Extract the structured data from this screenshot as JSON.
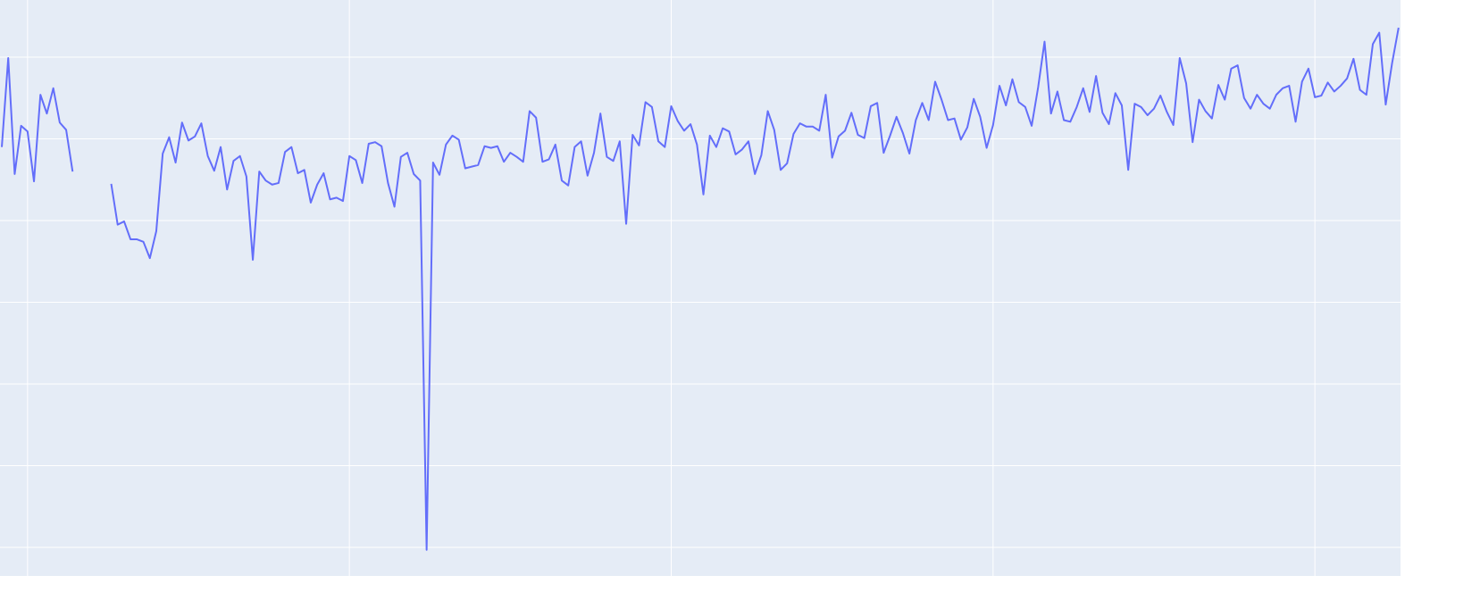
{
  "chart_data": {
    "type": "line",
    "x": [
      0,
      1,
      2,
      3,
      4,
      5,
      6,
      7,
      8,
      9,
      10,
      11,
      12,
      13,
      14,
      15,
      16,
      17,
      18,
      19,
      20,
      21,
      22,
      23,
      24,
      25,
      26,
      27,
      28,
      29,
      30,
      31,
      32,
      33,
      34,
      35,
      36,
      37,
      38,
      39,
      40,
      41,
      42,
      43,
      44,
      45,
      46,
      47,
      48,
      49,
      50,
      51,
      52,
      53,
      54,
      55,
      56,
      57,
      58,
      59,
      60,
      61,
      62,
      63,
      64,
      65,
      66,
      67,
      68,
      69,
      70,
      71,
      72,
      73,
      74,
      75,
      76,
      77,
      78,
      79,
      80,
      81,
      82,
      83,
      84,
      85,
      86,
      87,
      88,
      89,
      90,
      91,
      92,
      93,
      94,
      95,
      96,
      97,
      98,
      99,
      100,
      101,
      102,
      103,
      104,
      105,
      106,
      107,
      108,
      109,
      110,
      111,
      112,
      113,
      114,
      115,
      116,
      117,
      118,
      119,
      120,
      121,
      122,
      123,
      124,
      125,
      126,
      127,
      128,
      129,
      130,
      131,
      132,
      133,
      134,
      135,
      136,
      137,
      138,
      139,
      140,
      141,
      142,
      143,
      144,
      145,
      146,
      147,
      148,
      149,
      150,
      151,
      152,
      153,
      154,
      155,
      156,
      157,
      158,
      159,
      160,
      161,
      162,
      163,
      164,
      165,
      166,
      167,
      168,
      169,
      170,
      171,
      172,
      173,
      174,
      175,
      176,
      177,
      178,
      179,
      180,
      181,
      182,
      183,
      184,
      185,
      186,
      187,
      188,
      189,
      190,
      191,
      192,
      193,
      194,
      195,
      196,
      197,
      198,
      199,
      200,
      201,
      202,
      203,
      204,
      205,
      206,
      207,
      208,
      209,
      210,
      211,
      212,
      213,
      214,
      215,
      216,
      217
    ],
    "series": [
      {
        "color": "#636efa",
        "values": [
          4.9,
          5.99,
          4.57,
          5.16,
          5.09,
          4.48,
          5.54,
          5.31,
          5.62,
          5.2,
          5.11,
          4.6,
          null,
          null,
          null,
          null,
          null,
          4.45,
          3.95,
          3.99,
          3.77,
          3.77,
          3.74,
          3.54,
          3.87,
          4.82,
          5.02,
          4.71,
          5.2,
          4.98,
          5.03,
          5.19,
          4.79,
          4.61,
          4.9,
          4.38,
          4.73,
          4.79,
          4.54,
          3.52,
          4.6,
          4.49,
          4.44,
          4.46,
          4.84,
          4.9,
          4.58,
          4.62,
          4.22,
          4.44,
          4.58,
          4.26,
          4.28,
          4.24,
          4.79,
          4.74,
          4.46,
          4.94,
          4.96,
          4.91,
          4.46,
          4.17,
          4.78,
          4.83,
          4.57,
          4.49,
          -0.03,
          4.71,
          4.56,
          4.93,
          5.04,
          4.99,
          4.64,
          4.66,
          4.68,
          4.91,
          4.89,
          4.91,
          4.72,
          4.83,
          4.78,
          4.72,
          5.34,
          5.26,
          4.72,
          4.75,
          4.93,
          4.49,
          4.43,
          4.9,
          4.97,
          4.55,
          4.83,
          5.31,
          4.78,
          4.73,
          4.97,
          3.96,
          5.05,
          4.92,
          5.45,
          5.39,
          4.97,
          4.9,
          5.4,
          5.22,
          5.1,
          5.18,
          4.93,
          4.32,
          5.04,
          4.9,
          5.13,
          5.09,
          4.81,
          4.87,
          4.97,
          4.57,
          4.8,
          5.34,
          5.11,
          4.62,
          4.7,
          5.06,
          5.19,
          5.15,
          5.15,
          5.1,
          5.54,
          4.77,
          5.03,
          5.1,
          5.32,
          5.05,
          5.01,
          5.4,
          5.44,
          4.83,
          5.04,
          5.27,
          5.07,
          4.82,
          5.23,
          5.44,
          5.23,
          5.7,
          5.48,
          5.23,
          5.25,
          4.99,
          5.14,
          5.49,
          5.27,
          4.89,
          5.17,
          5.65,
          5.41,
          5.73,
          5.45,
          5.39,
          5.16,
          5.63,
          6.19,
          5.31,
          5.58,
          5.23,
          5.21,
          5.39,
          5.62,
          5.33,
          5.77,
          5.32,
          5.18,
          5.56,
          5.41,
          4.62,
          5.43,
          5.39,
          5.29,
          5.37,
          5.53,
          5.33,
          5.17,
          5.99,
          5.68,
          4.96,
          5.48,
          5.34,
          5.25,
          5.66,
          5.48,
          5.86,
          5.9,
          5.5,
          5.37,
          5.54,
          5.43,
          5.37,
          5.54,
          5.62,
          5.65,
          5.21,
          5.7,
          5.86,
          5.51,
          5.53,
          5.69,
          5.58,
          5.65,
          5.74,
          5.98,
          5.6,
          5.54,
          6.16,
          6.3,
          5.42,
          5.93,
          6.36
        ]
      }
    ],
    "xlim": [
      -0.28,
      217.3
    ],
    "xticks": [
      4,
      54,
      104,
      154,
      204
    ],
    "ylim": [
      -0.35,
      6.7
    ],
    "yticks": [
      0,
      1,
      2,
      3,
      4,
      5,
      6
    ],
    "grid": true
  }
}
